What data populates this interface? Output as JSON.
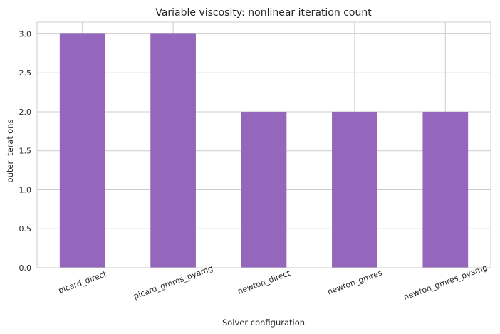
{
  "chart_data": {
    "type": "bar",
    "title": "Variable viscosity: nonlinear iteration count",
    "xlabel": "Solver configuration",
    "ylabel": "outer iterations",
    "categories": [
      "picard_direct",
      "picard_gmres_pyamg",
      "newton_direct",
      "newton_gmres",
      "newton_gmres_pyamg"
    ],
    "values": [
      3,
      3,
      2,
      2,
      2
    ],
    "ylim": [
      0,
      3.15
    ],
    "yticks": [
      0.0,
      0.5,
      1.0,
      1.5,
      2.0,
      2.5,
      3.0
    ],
    "ytick_labels": [
      "0.0",
      "0.5",
      "1.0",
      "1.5",
      "2.0",
      "2.5",
      "3.0"
    ],
    "grid": true,
    "legend": "none",
    "bar_color": "#9467bd"
  }
}
